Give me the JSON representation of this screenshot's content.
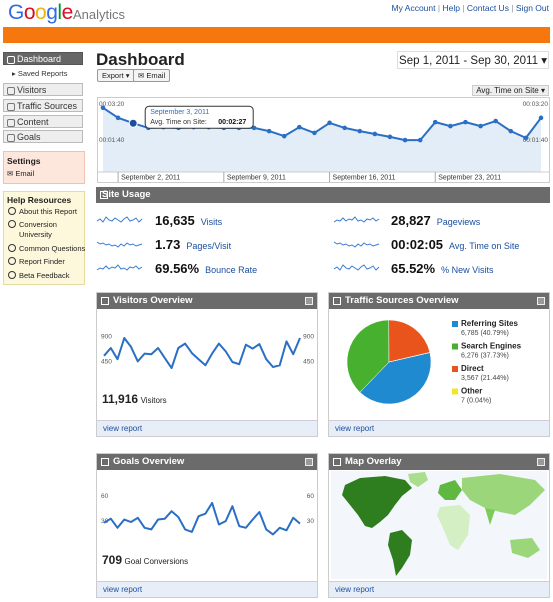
{
  "header": {
    "logo": "Google",
    "product": "Analytics",
    "links": [
      "My Account",
      "Help",
      "Contact Us",
      "Sign Out"
    ]
  },
  "sidebar": {
    "nav": [
      "Dashboard",
      "Saved Reports",
      "Visitors",
      "Traffic Sources",
      "Content",
      "Goals"
    ],
    "settings": {
      "title": "Settings",
      "items": [
        "Email"
      ]
    },
    "help": {
      "title": "Help Resources",
      "items": [
        "About this Report",
        "Conversion University",
        "Common Questions",
        "Report Finder",
        "Beta Feedback"
      ]
    }
  },
  "main": {
    "title": "Dashboard",
    "buttons": [
      "Export",
      "Email"
    ],
    "date_range": "Sep 1, 2011 - Sep 30, 2011",
    "metric": "Avg. Time on Site",
    "site_usage": {
      "title": "Site Usage",
      "metrics": [
        {
          "value": "16,635",
          "label": "Visits"
        },
        {
          "value": "1.73",
          "label": "Pages/Visit"
        },
        {
          "value": "69.56%",
          "label": "Bounce Rate"
        },
        {
          "value": "28,827",
          "label": "Pageviews"
        },
        {
          "value": "00:02:05",
          "label": "Avg. Time on Site"
        },
        {
          "value": "65.52%",
          "label": "% New Visits"
        }
      ]
    },
    "visitors_overview": {
      "total": "11,916",
      "total_label": "Visitors",
      "link": "view report"
    },
    "traffic_sources": {
      "link": "view report"
    },
    "goals_overview": {
      "total": "709",
      "total_label": "Goal Conversions",
      "link": "view report"
    },
    "map_overlay": {
      "title": "Map Overlay",
      "link": "view report"
    }
  },
  "chart_data": [
    {
      "type": "line",
      "categories": [
        null,
        "September 2, 2011",
        null,
        null,
        null,
        null,
        null,
        null,
        "September 9, 2011",
        null,
        null,
        null,
        null,
        null,
        null,
        "September 16, 2011",
        null,
        null,
        null,
        null,
        null,
        null,
        "September 23, 2011",
        null,
        null,
        null,
        null,
        null,
        null,
        null
      ],
      "values": [
        190,
        162,
        147,
        134,
        136,
        134,
        136,
        136,
        134,
        134,
        134,
        125,
        111,
        136,
        120,
        148,
        134,
        125,
        117,
        109,
        100,
        100,
        150,
        139,
        150,
        139,
        153,
        125,
        106,
        162
      ],
      "color": "#2b6fc4",
      "area": true,
      "markers": true,
      "ylim": [
        0,
        220
      ],
      "yticks": [
        {
          "value": 200,
          "label": "00:03:20"
        },
        {
          "value": 100,
          "label": "00:01:40"
        }
      ],
      "tooltip": {
        "date": "September 3, 2011",
        "label": "Avg. Time on Site:",
        "value": "00:02:27"
      }
    },
    {
      "type": "line",
      "title": "Visitors Overview",
      "values": [
        560,
        700,
        500,
        880,
        720,
        460,
        600,
        590,
        700,
        520,
        340,
        700,
        780,
        610,
        500,
        390,
        600,
        780,
        640,
        450,
        410,
        760,
        690,
        770,
        500,
        360,
        390,
        820,
        590,
        880
      ],
      "color": "#2b6fc4",
      "area": false,
      "markers": false,
      "ylim": [
        0,
        1150
      ],
      "yticks": [
        900,
        450
      ]
    },
    {
      "type": "line",
      "title": "Goals Overview",
      "values": [
        28,
        33,
        22,
        32,
        29,
        34,
        22,
        20,
        32,
        33,
        42,
        35,
        20,
        17,
        36,
        39,
        52,
        26,
        30,
        48,
        24,
        22,
        32,
        41,
        20,
        14,
        22,
        19,
        34,
        27
      ],
      "color": "#2b6fc4",
      "area": false,
      "markers": false,
      "ylim": [
        0,
        70
      ],
      "yticks": [
        60,
        30
      ]
    },
    {
      "type": "pie",
      "title": "Traffic Sources Overview",
      "categories": [
        "Referring Sites",
        "Search Engines",
        "Direct",
        "Other"
      ],
      "values": [
        6785,
        6276,
        3567,
        7
      ],
      "value_labels": [
        "6,785 (40.79%)",
        "6,276 (37.73%)",
        "3,567 (21.44%)",
        "7 (0.04%)"
      ],
      "colors": [
        "#1f8ad0",
        "#47b02f",
        "#e8541c",
        "#f4e52a"
      ]
    }
  ]
}
